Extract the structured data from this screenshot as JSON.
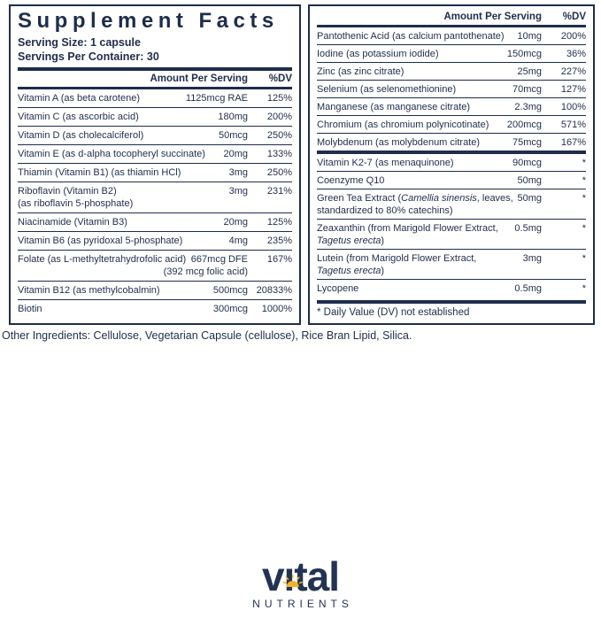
{
  "title": "Supplement Facts",
  "serving": {
    "size": "Serving Size: 1 capsule",
    "per_container": "Servings Per Container: 30"
  },
  "columns": {
    "amount": "Amount Per Serving",
    "dv": "%DV"
  },
  "left_rows": [
    {
      "name": "Vitamin A (as beta carotene)",
      "amount": "1125mcg RAE",
      "dv": "125%"
    },
    {
      "name": "Vitamin C (as ascorbic acid)",
      "amount": "180mg",
      "dv": "200%"
    },
    {
      "name": "Vitamin D (as cholecalciferol)",
      "amount": "50mcg",
      "dv": "250%"
    },
    {
      "name": "Vitamin E (as d-alpha tocopheryl succinate)",
      "amount": "20mg",
      "dv": "133%"
    },
    {
      "name": "Thiamin (Vitamin B1) (as thiamin HCl)",
      "amount": "3mg",
      "dv": "250%"
    },
    {
      "name": "Riboflavin (Vitamin B2)",
      "name2": "(as riboflavin 5-phosphate)",
      "amount": "3mg",
      "dv": "231%"
    },
    {
      "name": "Niacinamide (Vitamin B3)",
      "amount": "20mg",
      "dv": "125%"
    },
    {
      "name": "Vitamin B6 (as pyridoxal 5-phosphate)",
      "amount": "4mg",
      "dv": "235%"
    },
    {
      "name": "Folate (as L-methyltetrahydrofolic acid)",
      "amount": "667mcg DFE",
      "dv": "167%",
      "amount2": "(392 mcg folic acid)"
    },
    {
      "name": "Vitamin B12 (as methylcobalmin)",
      "amount": "500mcg",
      "dv": "20833%"
    },
    {
      "name": "Biotin",
      "amount": "300mcg",
      "dv": "1000%"
    }
  ],
  "right_rows_group1": [
    {
      "name": "Pantothenic Acid (as calcium pantothenate)",
      "amount": "10mg",
      "dv": "200%"
    },
    {
      "name": "Iodine (as potassium iodide)",
      "amount": "150mcg",
      "dv": "36%"
    },
    {
      "name": "Zinc (as zinc citrate)",
      "amount": "25mg",
      "dv": "227%"
    },
    {
      "name": "Selenium (as selenomethionine)",
      "amount": "70mcg",
      "dv": "127%"
    },
    {
      "name": "Manganese (as manganese citrate)",
      "amount": "2.3mg",
      "dv": "100%"
    },
    {
      "name": "Chromium (as chromium polynicotinate)",
      "amount": "200mcg",
      "dv": "571%"
    },
    {
      "name": "Molybdenum (as molybdenum citrate)",
      "amount": "75mcg",
      "dv": "167%"
    }
  ],
  "right_rows_group2": [
    {
      "name": "Vitamin K2-7 (as menaquinone)",
      "amount": "90mcg",
      "dv": "*"
    },
    {
      "name": "Coenzyme Q10",
      "amount": "50mg",
      "dv": "*"
    },
    {
      "name": "Green Tea Extract (Camellia sinensis, leaves,",
      "name2": "standardized to 80% catechins)",
      "amount": "50mg",
      "dv": "*",
      "italics": [
        "Camellia sinensis"
      ]
    },
    {
      "name": "Zeaxanthin (from Marigold Flower Extract,",
      "name2": "Tagetus erecta)",
      "amount": "0.5mg",
      "dv": "*",
      "italics": [
        "Tagetus erecta"
      ]
    },
    {
      "name": "Lutein (from Marigold Flower Extract,",
      "name2": "Tagetus erecta)",
      "amount": "3mg",
      "dv": "*",
      "italics": [
        "Tagetus erecta"
      ]
    },
    {
      "name": "Lycopene",
      "amount": "0.5mg",
      "dv": "*"
    }
  ],
  "footnote": "* Daily Value (DV) not established",
  "other_ingredients": "Other Ingredients: Cellulose, Vegetarian Capsule (cellulose), Rice Bran Lipid, Silica.",
  "logo": {
    "brand": "vital",
    "sub": "NUTRIENTS"
  },
  "colors": {
    "navy": "#1e2d4c",
    "logo_navy": "#233354",
    "gold": "#f2b32b",
    "background": "#ffffff"
  }
}
